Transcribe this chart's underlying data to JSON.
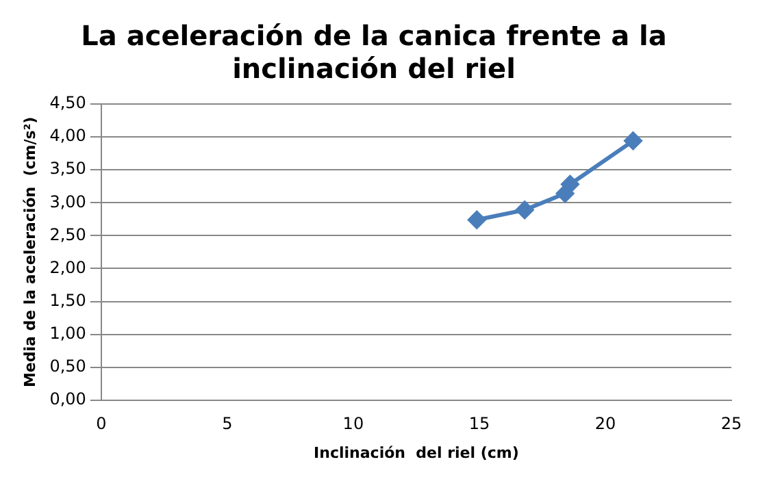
{
  "chart_data": {
    "type": "line",
    "title": "La aceleración de la canica frente a la inclinación del riel",
    "xlabel": "Inclinación  del riel (cm)",
    "ylabel": "Media de la aceleración  (cm/s²)",
    "series": [
      {
        "color": "#4a7ebb",
        "x": [
          14.9,
          16.8,
          18.4,
          18.6,
          21.1
        ],
        "values": [
          2.74,
          2.89,
          3.14,
          3.28,
          3.94
        ]
      }
    ],
    "xlim": [
      0,
      25
    ],
    "xticks": [
      0,
      5,
      10,
      15,
      20,
      25
    ],
    "ylim": [
      0,
      4.5
    ],
    "yticks": [
      {
        "value": 0,
        "label": "0,00"
      },
      {
        "value": 0.5,
        "label": "0,50"
      },
      {
        "value": 1,
        "label": "1,00"
      },
      {
        "value": 1.5,
        "label": "1,50"
      },
      {
        "value": 2,
        "label": "2,00"
      },
      {
        "value": 2.5,
        "label": "2,50"
      },
      {
        "value": 3,
        "label": "3,00"
      },
      {
        "value": 3.5,
        "label": "3,50"
      },
      {
        "value": 4,
        "label": "4,00"
      },
      {
        "value": 4.5,
        "label": "4,50"
      }
    ],
    "grid": "y",
    "legend": false,
    "marker": "diamond",
    "line_style": "solid"
  }
}
